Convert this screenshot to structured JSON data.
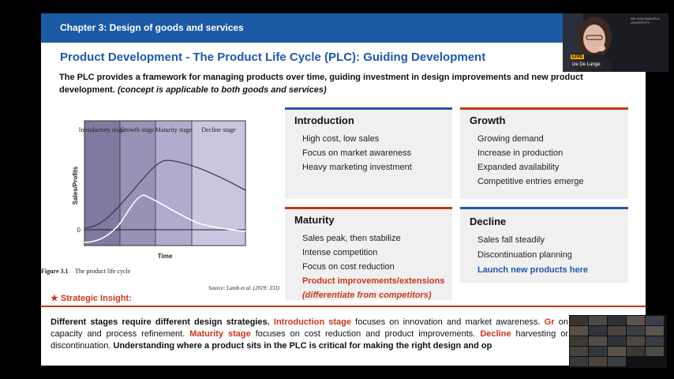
{
  "slide": {
    "chapter": "Chapter 3: Design of goods and services",
    "title": "Product Development - The Product Life Cycle (PLC): Guiding Development",
    "intro_text": "The PLC provides a framework for managing products over time, guiding investment in design improvements and new product development.",
    "intro_note": "(concept is applicable to both goods and services)"
  },
  "figure": {
    "caption_label": "Figure 3.1",
    "caption_text": "The product life cycle",
    "source": "Source: Lamb et al. (2019: 333)",
    "stages": [
      "Introductory stage",
      "Growth stage",
      "Maturity stage",
      "Decline stage"
    ],
    "y_axis": "Sales/Profits",
    "x_axis": "Time",
    "zero": "0"
  },
  "cards": [
    {
      "title": "Introduction",
      "accent": "#1f58a8",
      "items": [
        "High cost, low sales",
        "Focus on market awareness",
        "Heavy marketing investment"
      ]
    },
    {
      "title": "Growth",
      "accent": "#c8361c",
      "items": [
        "Growing demand",
        "Increase in production",
        "Expanded availability",
        "Competitive entries emerge"
      ]
    },
    {
      "title": "Maturity",
      "accent": "#c8361c",
      "items": [
        "Sales peak, then stabilize",
        "Intense competition",
        "Focus on cost reduction",
        "Product improvements/extensions",
        "(differentiate from competitors)"
      ]
    },
    {
      "title": "Decline",
      "accent": "#1f58a8",
      "items": [
        "Sales fall steadily",
        "Discontinuation planning",
        "Launch new products here"
      ]
    }
  ],
  "insight": {
    "label": "★ Strategic Insight:",
    "p1": "Different stages require different design strategies.",
    "p2": "Introduction stage",
    "p3": "focuses on innovation and market awareness.",
    "p4": "Gr",
    "p5": "on capacity and process refinement.",
    "p6": "Maturity stage",
    "p7": "focuses on cost reduction and product improvements.",
    "p8": "Decline",
    "p9": "harvesting or discontinuation.",
    "p10": "Understanding where a product sits in the PLC is critical for making the right design and op"
  },
  "video": {
    "speaker_name": "ize De Lange",
    "badge": "LIVE",
    "watermark": "NELSON MANDELA UNIVERSITY"
  }
}
